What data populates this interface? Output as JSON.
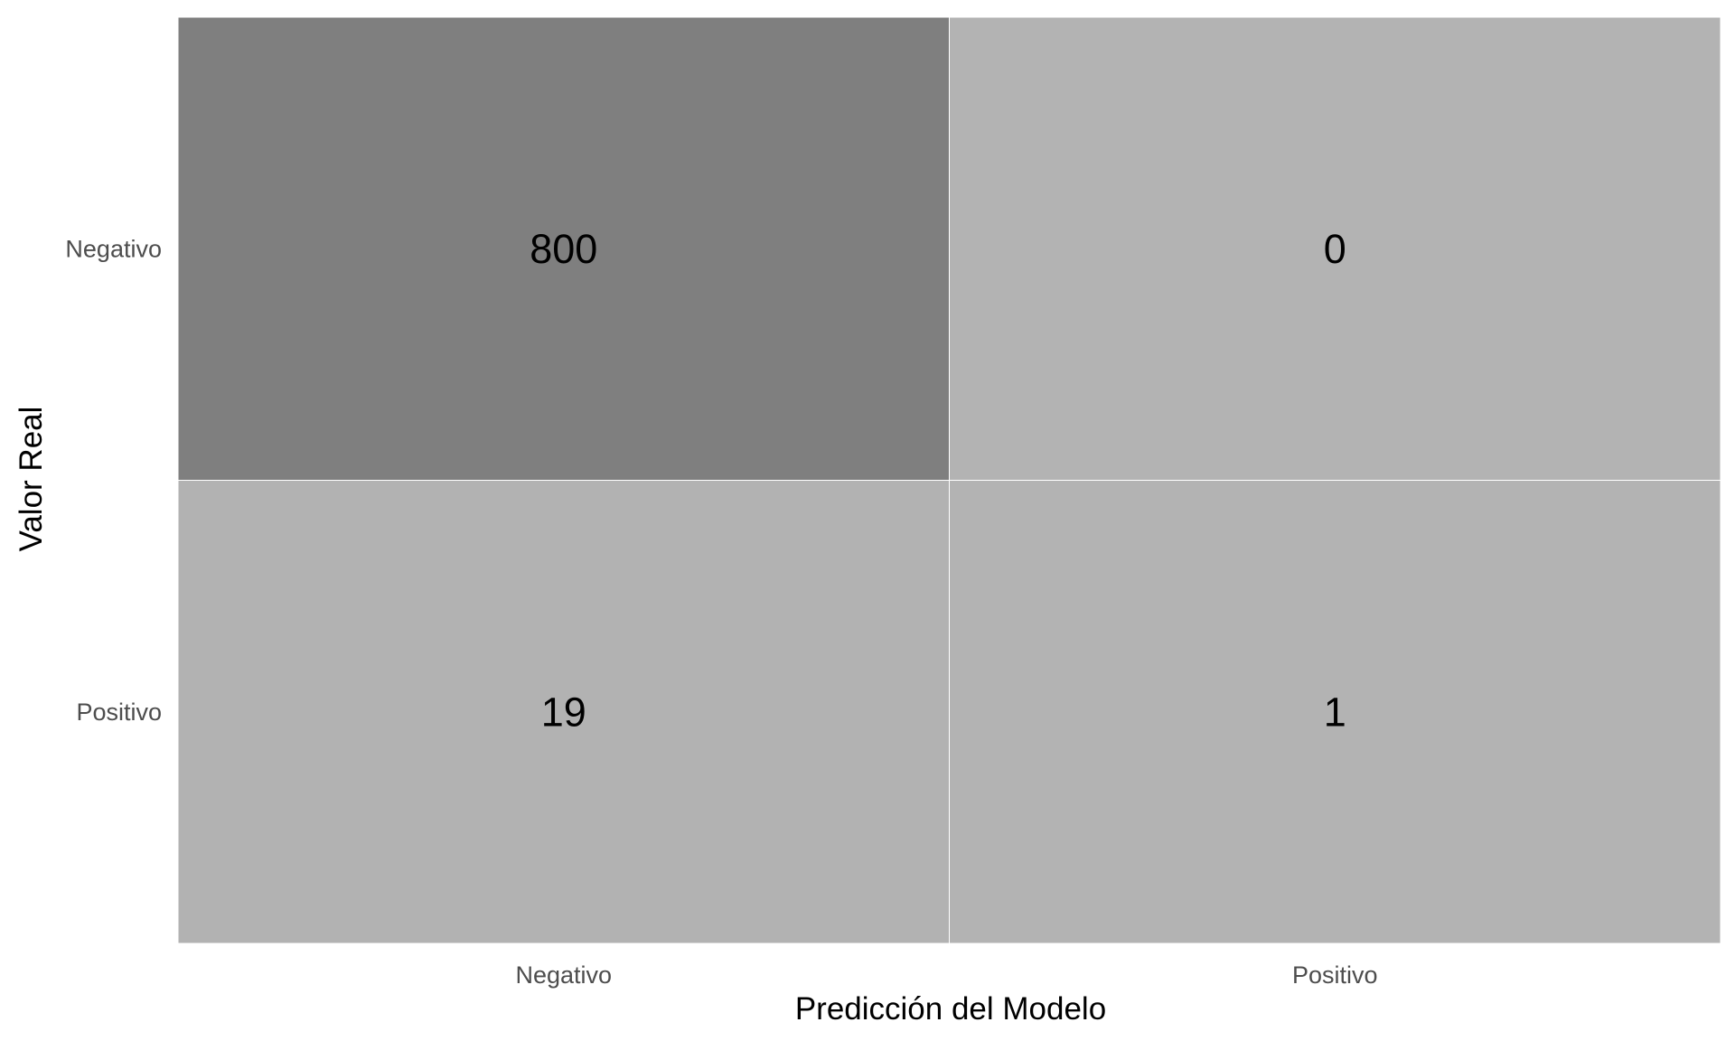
{
  "chart_data": {
    "type": "heatmap",
    "xlabel": "Predicción del Modelo",
    "ylabel": "Valor Real",
    "x_categories": [
      "Negativo",
      "Positivo"
    ],
    "y_categories": [
      "Negativo",
      "Positivo"
    ],
    "values": [
      [
        800,
        0
      ],
      [
        19,
        1
      ]
    ],
    "value_labels": [
      [
        "800",
        "0"
      ],
      [
        "19",
        "1"
      ]
    ],
    "color_scale": {
      "low": "#b3b3b3",
      "high": "#7f7f7f"
    },
    "legend": "none",
    "grid": false
  }
}
